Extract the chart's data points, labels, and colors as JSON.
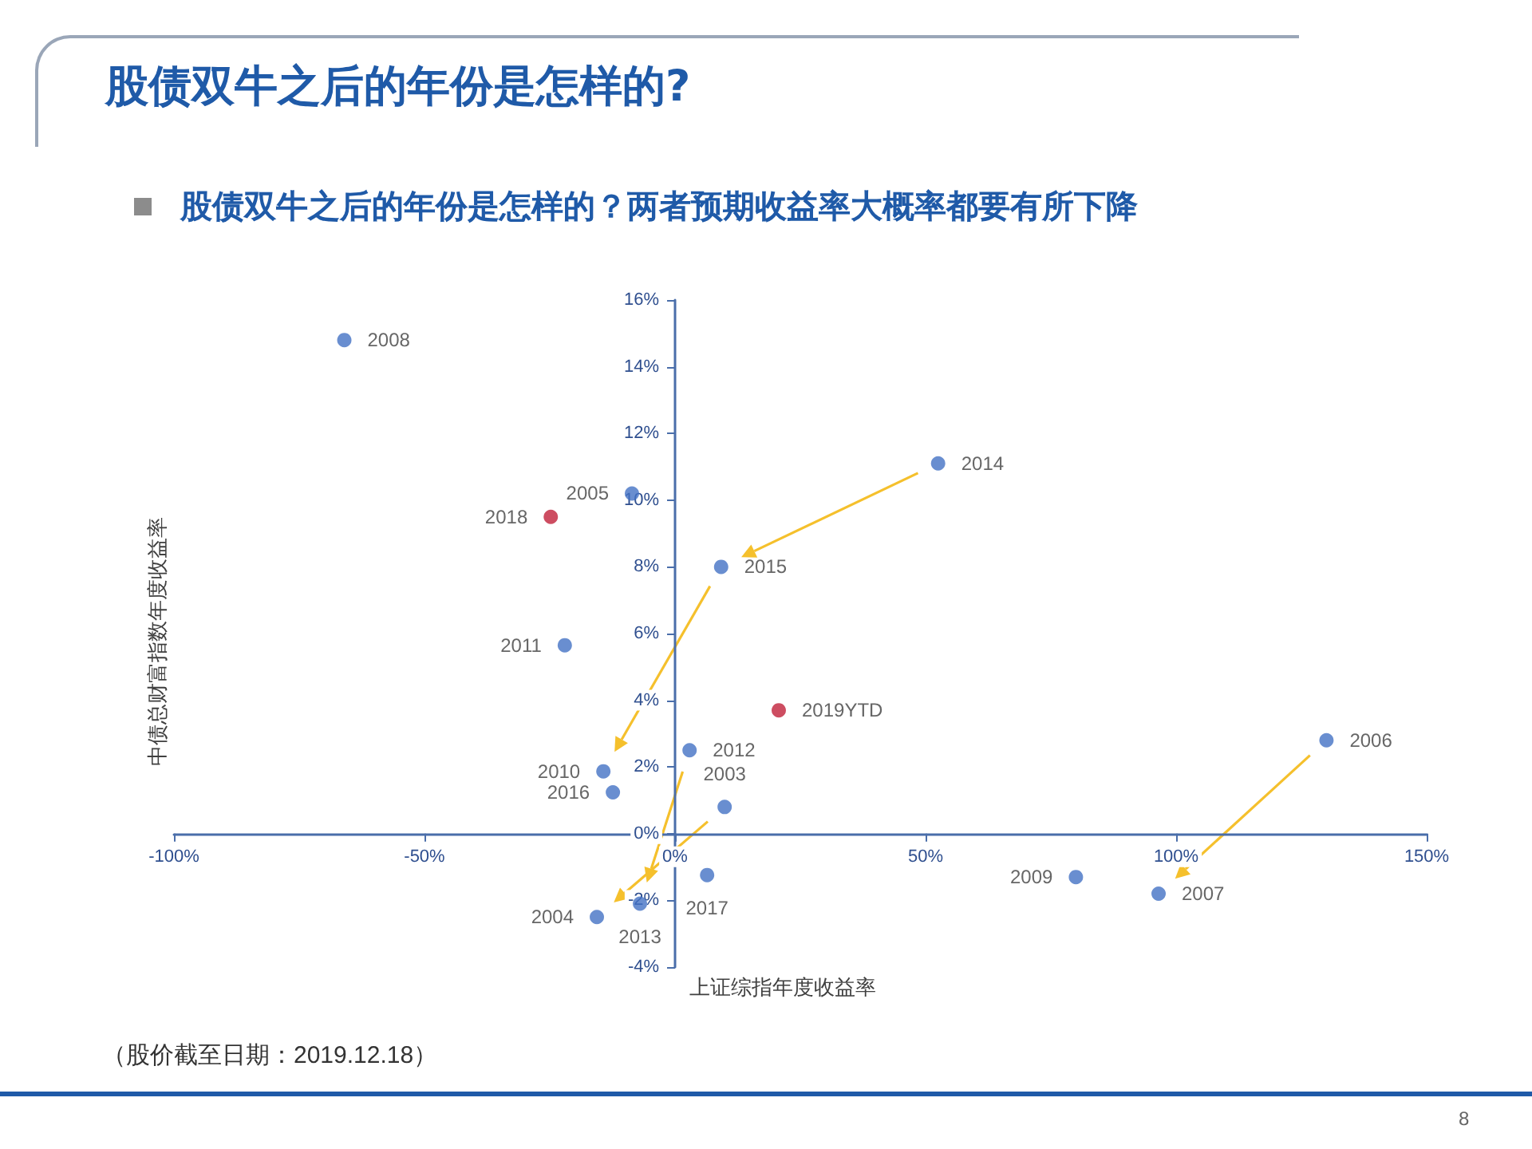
{
  "chart_data": {
    "type": "scatter",
    "title": "股债双牛之后的年份是怎样的?",
    "subtitle": "股债双牛之后的年份是怎样的？两者预期收益率大概率都要有所下降",
    "xlabel": "上证综指年度收益率",
    "ylabel": "中债总财富指数年度收益率",
    "marker": "circle",
    "xlim": [
      -100,
      150
    ],
    "xticks": [
      {
        "value": -100,
        "label": "-100%"
      },
      {
        "value": -50,
        "label": "-50%"
      },
      {
        "value": 0,
        "label": "0%"
      },
      {
        "value": 50,
        "label": "50%"
      },
      {
        "value": 100,
        "label": "100%"
      },
      {
        "value": 150,
        "label": "150%"
      }
    ],
    "ylim": [
      -4,
      16
    ],
    "yticks": [
      {
        "value": -4,
        "label": "-4%"
      },
      {
        "value": -2,
        "label": "-2%"
      },
      {
        "value": 0,
        "label": "0%"
      },
      {
        "value": 2,
        "label": "2%"
      },
      {
        "value": 4,
        "label": "4%"
      },
      {
        "value": 6,
        "label": "6%"
      },
      {
        "value": 8,
        "label": "8%"
      },
      {
        "value": 10,
        "label": "10%"
      },
      {
        "value": 12,
        "label": "12%"
      },
      {
        "value": 14,
        "label": "14%"
      },
      {
        "value": 16,
        "label": "16%"
      }
    ],
    "series": [
      {
        "color": "#4472c4",
        "x": [
          -66,
          -8.6,
          9.2,
          52.5,
          -22,
          2.9,
          -14.3,
          -12.4,
          9.9,
          130,
          6.4,
          80,
          96.5,
          -15.6,
          -7
        ],
        "values": [
          14.8,
          10.2,
          8.0,
          11.1,
          5.65,
          2.5,
          1.87,
          1.24,
          0.8,
          2.8,
          -1.24,
          -1.3,
          -1.8,
          -2.5,
          -2.1
        ]
      },
      {
        "color": "#c0203a",
        "x": [
          -24.8,
          20.7
        ],
        "values": [
          9.5,
          3.7
        ]
      }
    ],
    "annotations": [
      {
        "text": "2008",
        "x": -66,
        "y": 14.8
      },
      {
        "text": "2005",
        "x": -8.6,
        "y": 10.2
      },
      {
        "text": "2015",
        "x": 9.2,
        "y": 8.0
      },
      {
        "text": "2014",
        "x": 52.5,
        "y": 11.1
      },
      {
        "text": "2011",
        "x": -22,
        "y": 5.65
      },
      {
        "text": "2012",
        "x": 2.9,
        "y": 2.5
      },
      {
        "text": "2010",
        "x": -14.3,
        "y": 1.87
      },
      {
        "text": "2016",
        "x": -12.4,
        "y": 1.24
      },
      {
        "text": "2003",
        "x": 9.9,
        "y": 0.8
      },
      {
        "text": "2006",
        "x": 130,
        "y": 2.8
      },
      {
        "text": "2017",
        "x": 6.4,
        "y": -1.24
      },
      {
        "text": "2009",
        "x": 80,
        "y": -1.3
      },
      {
        "text": "2007",
        "x": 96.5,
        "y": -1.8
      },
      {
        "text": "2004",
        "x": -15.6,
        "y": -2.5
      },
      {
        "text": "2013",
        "x": -7,
        "y": -2.1
      },
      {
        "text": "2018",
        "x": -24.8,
        "y": 9.5
      },
      {
        "text": "2019YTD",
        "x": 20.7,
        "y": 3.7
      },
      "（股价截至日期：2019.12.18）",
      "8"
    ]
  }
}
